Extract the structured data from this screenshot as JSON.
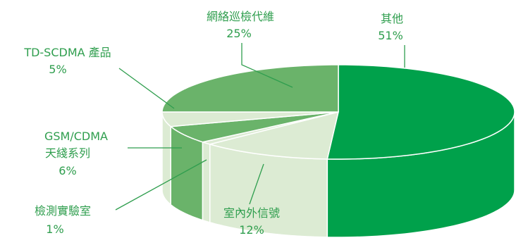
{
  "chart_data": {
    "type": "pie",
    "style": "3d",
    "slices": [
      {
        "label": "其他",
        "value": 51,
        "value_label": "51%",
        "top_color": "#00a14b",
        "side_color": "#00a14b"
      },
      {
        "label": "室內外信號",
        "value": 12,
        "value_label": "12%",
        "top_color": "#dcebd3",
        "side_color": "#dcebd3"
      },
      {
        "label": "檢測實驗室",
        "value": 1,
        "value_label": "1%",
        "top_color": "#dcebd3",
        "side_color": "#dcebd3"
      },
      {
        "label_lines": [
          "GSM/CDMA",
          "天綫系列"
        ],
        "label": "GSM/CDMA 天綫系列",
        "value": 6,
        "value_label": "6%",
        "top_color": "#6ab36a",
        "side_color": "#6ab36a"
      },
      {
        "label": "TD-SCDMA 產品",
        "value": 5,
        "value_label": "5%",
        "top_color": "#dcebd3",
        "side_color": "#dcebd3"
      },
      {
        "label": "網絡巡檢代維",
        "value": 25,
        "value_label": "25%",
        "top_color": "#6ab36a",
        "side_color": "#6ab36a"
      }
    ],
    "title": "",
    "legend": "none"
  }
}
